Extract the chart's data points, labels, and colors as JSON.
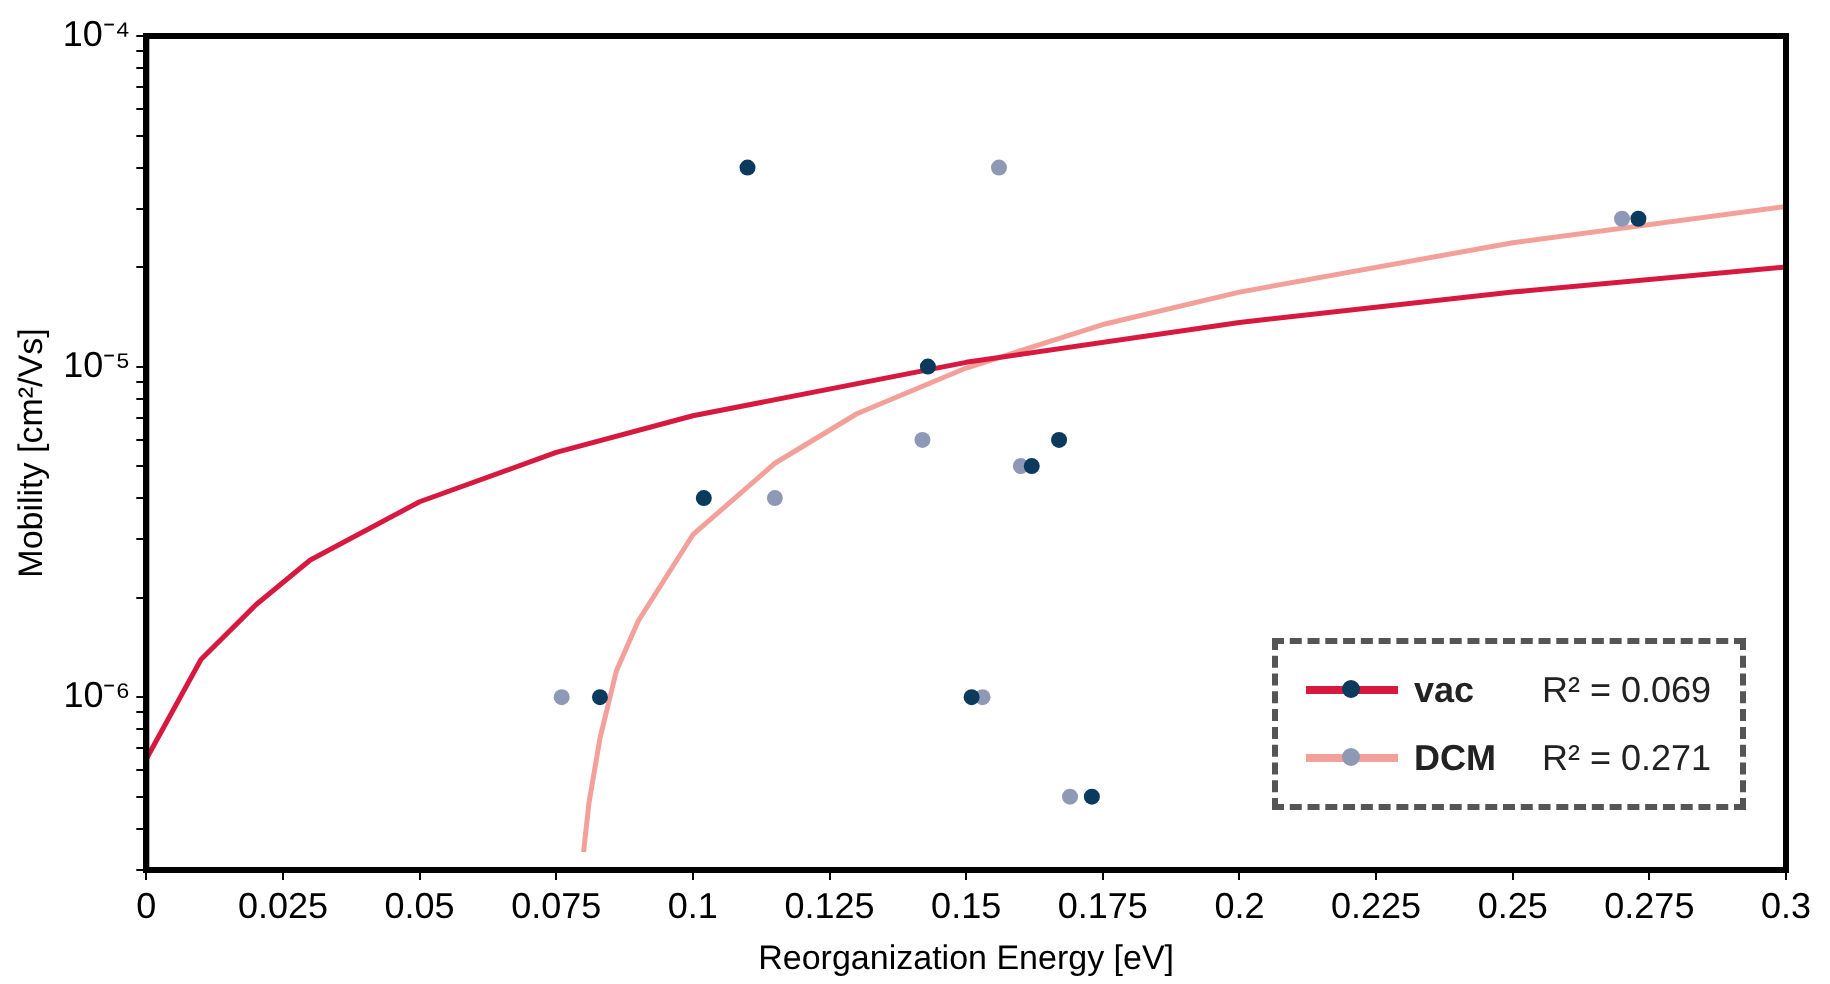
{
  "chart_data": {
    "type": "scatter",
    "xlabel": "Reorganization Energy [eV]",
    "ylabel": "Mobility [cm²/Vs]",
    "log": "y",
    "grid": false,
    "legend": "bottom right",
    "marker": "circle",
    "xlim": [
      0,
      0.3
    ],
    "xticks": [
      0,
      0.025,
      0.05,
      0.075,
      0.1,
      0.125,
      0.15,
      0.175,
      0.2,
      0.225,
      0.25,
      0.275,
      0.3
    ],
    "ylim": [
      3e-07,
      0.0001
    ],
    "yticks": [
      {
        "value": 0.0001,
        "label": "10⁻⁴"
      },
      {
        "value": 9e-05,
        "label": null
      },
      {
        "value": 8e-05,
        "label": null
      },
      {
        "value": 7e-05,
        "label": null
      },
      {
        "value": 6e-05,
        "label": null
      },
      {
        "value": 5e-05,
        "label": null
      },
      {
        "value": 4e-05,
        "label": null
      },
      {
        "value": 3e-05,
        "label": null
      },
      {
        "value": 2e-05,
        "label": null
      },
      {
        "value": 1e-05,
        "label": "10⁻⁵"
      },
      {
        "value": 9e-06,
        "label": null
      },
      {
        "value": 8e-06,
        "label": null
      },
      {
        "value": 7e-06,
        "label": null
      },
      {
        "value": 6e-06,
        "label": null
      },
      {
        "value": 5e-06,
        "label": null
      },
      {
        "value": 4e-06,
        "label": null
      },
      {
        "value": 3e-06,
        "label": null
      },
      {
        "value": 2e-06,
        "label": null
      },
      {
        "value": 1e-06,
        "label": "10⁻⁶"
      },
      {
        "value": 9e-07,
        "label": null
      },
      {
        "value": 8e-07,
        "label": null
      },
      {
        "value": 7e-07,
        "label": null
      },
      {
        "value": 6e-07,
        "label": null
      },
      {
        "value": 5e-07,
        "label": null
      },
      {
        "value": 4e-07,
        "label": null
      },
      {
        "value": 3e-07,
        "label": null
      }
    ],
    "annotations": [
      "R² = 0.069",
      "R² = 0.271"
    ],
    "series": [
      {
        "type": "line",
        "color": "#d7193f",
        "marker": "none",
        "x": [
          0,
          0.01,
          0.02,
          0.03,
          0.05,
          0.075,
          0.1,
          0.15,
          0.2,
          0.25,
          0.3
        ],
        "values": [
          6.5e-07,
          1.3e-06,
          1.9e-06,
          2.6e-06,
          3.9e-06,
          5.5e-06,
          7.1e-06,
          1.03e-05,
          1.36e-05,
          1.68e-05,
          2e-05
        ]
      },
      {
        "type": "line",
        "color": "#f4a09a",
        "marker": "none",
        "x": [
          0.08,
          0.081,
          0.083,
          0.086,
          0.09,
          0.1,
          0.115,
          0.13,
          0.15,
          0.175,
          0.2,
          0.25,
          0.3
        ],
        "values": [
          3.4e-07,
          4.8e-07,
          7.5e-07,
          1.2e-06,
          1.7e-06,
          3.1e-06,
          5.1e-06,
          7.2e-06,
          9.9e-06,
          1.34e-05,
          1.68e-05,
          2.37e-05,
          3.05e-05
        ]
      },
      {
        "name": "vac",
        "color": "#0b3a5c",
        "x": [
          0.11,
          0.143,
          0.102,
          0.167,
          0.162,
          0.083,
          0.151,
          0.173,
          0.273
        ],
        "values": [
          4e-05,
          1e-05,
          4e-06,
          6e-06,
          5e-06,
          1e-06,
          1e-06,
          5e-07,
          2.8e-05
        ]
      },
      {
        "name": "DCM",
        "color": "#8e9ab5",
        "x": [
          0.156,
          0.144,
          0.142,
          0.115,
          0.16,
          0.076,
          0.153,
          0.169,
          0.27
        ],
        "values": [
          4e-05,
          null,
          6e-06,
          4e-06,
          5e-06,
          1e-06,
          1e-06,
          5e-07,
          2.8e-05
        ]
      }
    ]
  }
}
